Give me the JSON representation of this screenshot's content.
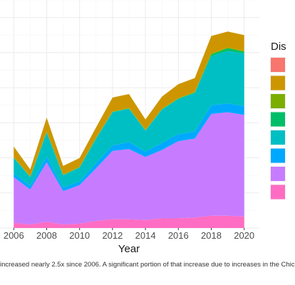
{
  "caption": "increased nearly 2.5x since 2006. A significant portion of that increase due to increases in the Chic",
  "chart_data": {
    "type": "area",
    "stacked": true,
    "xlabel": "Year",
    "ylabel": "",
    "x_ticks": [
      2006,
      2008,
      2010,
      2012,
      2014,
      2016,
      2018,
      2020
    ],
    "xlim": [
      2005.9,
      2020.1
    ],
    "ylim": [
      0,
      13
    ],
    "legend_title": "Dis",
    "legend_placement": "right",
    "grid": true,
    "x": [
      2006,
      2007,
      2008,
      2009,
      2010,
      2011,
      2012,
      2013,
      2014,
      2015,
      2016,
      2017,
      2018,
      2019,
      2020
    ],
    "series": [
      {
        "color": "#FF6CC3",
        "values": [
          0.3,
          0.2,
          0.35,
          0.2,
          0.25,
          0.4,
          0.5,
          0.5,
          0.45,
          0.55,
          0.55,
          0.6,
          0.7,
          0.7,
          0.65
        ]
      },
      {
        "color": "#C77CFF",
        "values": [
          2.6,
          2.0,
          3.4,
          1.9,
          2.2,
          3.0,
          3.9,
          4.0,
          3.6,
          3.9,
          4.4,
          4.5,
          5.8,
          5.9,
          5.8
        ]
      },
      {
        "color": "#00A9FF",
        "values": [
          0.2,
          0.2,
          0.3,
          0.2,
          0.2,
          0.3,
          0.3,
          0.4,
          0.3,
          0.4,
          0.4,
          0.4,
          0.5,
          0.5,
          0.5
        ]
      },
      {
        "color": "#00BFC4",
        "values": [
          0.9,
          0.5,
          1.4,
          0.7,
          0.8,
          1.4,
          1.9,
          1.9,
          1.2,
          1.9,
          2.0,
          2.2,
          2.8,
          3.0,
          3.0
        ]
      },
      {
        "color": "#00BE67",
        "values": [
          0.02,
          0.02,
          0.02,
          0.02,
          0.02,
          0.02,
          0.02,
          0.02,
          0.02,
          0.02,
          0.03,
          0.03,
          0.1,
          0.15,
          0.1
        ]
      },
      {
        "color": "#7CAE00",
        "values": [
          0.02,
          0.02,
          0.02,
          0.02,
          0.02,
          0.02,
          0.02,
          0.02,
          0.02,
          0.02,
          0.02,
          0.02,
          0.05,
          0.05,
          0.05
        ]
      },
      {
        "color": "#CD9600",
        "values": [
          0.6,
          0.4,
          0.8,
          0.5,
          0.5,
          0.6,
          0.8,
          0.8,
          0.6,
          0.7,
          0.8,
          0.8,
          1.0,
          0.9,
          0.9
        ]
      },
      {
        "color": "#F8766D",
        "values": [
          0.0,
          0.0,
          0.0,
          0.0,
          0.0,
          0.0,
          0.0,
          0.0,
          0.0,
          0.0,
          0.0,
          0.0,
          0.0,
          0.0,
          0.0
        ]
      }
    ],
    "legend_colors": [
      "#F8766D",
      "#CD9600",
      "#7CAE00",
      "#00BE67",
      "#00BFC4",
      "#00A9FF",
      "#C77CFF",
      "#FF6CC3"
    ]
  }
}
